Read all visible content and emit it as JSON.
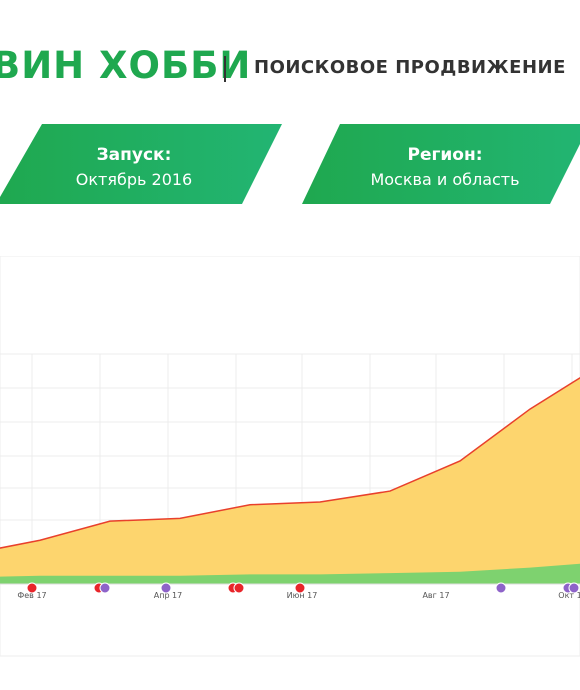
{
  "header": {
    "brand": "ВИН ХОББИ",
    "subtitle": "ПОИСКОВОЕ ПРОДВИЖЕНИЕ"
  },
  "cards": {
    "launch": {
      "title": "Запуск:",
      "value": "Октябрь 2016"
    },
    "region": {
      "title": "Регион:",
      "value": "Москва и область"
    }
  },
  "colors": {
    "brand_green": "#1fa84f",
    "card_gradient_start": "#1fa84f",
    "card_gradient_end": "#22b573",
    "area_yellow": "#fdd56e",
    "area_green": "#7ed26f",
    "line_red": "#e8402c",
    "marker_red": "#e8252a",
    "marker_purple": "#8e63c9"
  },
  "chart_data": {
    "type": "area",
    "x_labels": [
      "Фев 17",
      "Апр 17",
      "Июн 17",
      "Авг 17",
      "Окт 1"
    ],
    "x": [
      0,
      1,
      2,
      3,
      4,
      5,
      6,
      7,
      8,
      9
    ],
    "series": [
      {
        "values": [
          22,
          32,
          46,
          48,
          58,
          60,
          68,
          90,
          128,
          160
        ]
      },
      {
        "values": [
          5,
          6,
          6,
          6,
          7,
          7,
          8,
          9,
          12,
          16
        ]
      }
    ],
    "ylim": [
      0,
      240
    ],
    "grid": true,
    "event_markers": [
      {
        "label_index": 0,
        "colors": [
          "red"
        ]
      },
      {
        "label_index": 0.5,
        "colors": [
          "red",
          "purple"
        ]
      },
      {
        "label_index": 1,
        "colors": [
          "purple"
        ]
      },
      {
        "label_index": 1.5,
        "colors": [
          "red",
          "red"
        ]
      },
      {
        "label_index": 2,
        "colors": [
          "red"
        ]
      },
      {
        "label_index": 3.5,
        "colors": [
          "purple"
        ]
      },
      {
        "label_index": 4,
        "colors": [
          "purple",
          "purple"
        ]
      }
    ]
  }
}
